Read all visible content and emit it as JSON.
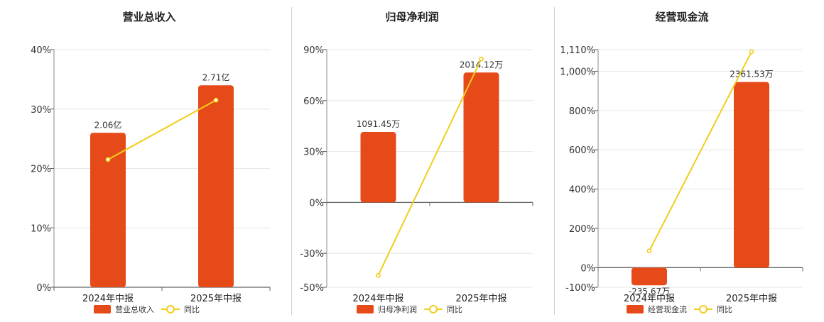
{
  "legend": {
    "yoy_label": "同比"
  },
  "chart_data": [
    {
      "type": "bar",
      "title": "营业总收入",
      "categories": [
        "2024年中报",
        "2025年中报"
      ],
      "series": [
        {
          "name": "营业总收入",
          "values_pct": [
            26,
            34
          ],
          "labels": [
            "2.06亿",
            "2.71亿"
          ]
        },
        {
          "name": "同比",
          "type": "line",
          "values": [
            21.5,
            31.5
          ]
        }
      ],
      "y_ticks": [
        {
          "value": 40,
          "label": "40%"
        },
        {
          "value": 30,
          "label": "30%"
        },
        {
          "value": 20,
          "label": "20%"
        },
        {
          "value": 10,
          "label": "10%"
        },
        {
          "value": 0,
          "label": "0%"
        }
      ],
      "ylim": [
        0,
        40
      ],
      "grid": true,
      "legend": "bottom",
      "colors": {
        "bar": "#e64a19",
        "line": "#f2cd1c"
      }
    },
    {
      "type": "bar",
      "title": "归母净利润",
      "categories": [
        "2024年中报",
        "2025年中报"
      ],
      "series": [
        {
          "name": "归母净利润",
          "values_pct": [
            41.5,
            76.5
          ],
          "labels": [
            "1091.45万",
            "2014.12万"
          ]
        },
        {
          "name": "同比",
          "type": "line",
          "values": [
            -43,
            84.5
          ]
        }
      ],
      "y_ticks": [
        {
          "value": 90,
          "label": "90%"
        },
        {
          "value": 60,
          "label": "60%"
        },
        {
          "value": 30,
          "label": "30%"
        },
        {
          "value": 0,
          "label": "0%"
        },
        {
          "value": -30,
          "label": "-30%"
        },
        {
          "value": -50,
          "label": "-50%"
        }
      ],
      "ylim": [
        -50,
        90
      ],
      "grid": true,
      "legend": "bottom",
      "colors": {
        "bar": "#e64a19",
        "line": "#f2cd1c"
      }
    },
    {
      "type": "bar",
      "title": "经营现金流",
      "categories": [
        "2024年中报",
        "2025年中报"
      ],
      "series": [
        {
          "name": "经营现金流",
          "values_pct": [
            -90,
            945
          ],
          "labels": [
            "-235.67万",
            "2361.53万"
          ]
        },
        {
          "name": "同比",
          "type": "line",
          "values": [
            85,
            1100
          ]
        }
      ],
      "y_ticks": [
        {
          "value": 1110,
          "label": "1,110%"
        },
        {
          "value": 1000,
          "label": "1,000%"
        },
        {
          "value": 800,
          "label": "800%"
        },
        {
          "value": 600,
          "label": "600%"
        },
        {
          "value": 400,
          "label": "400%"
        },
        {
          "value": 200,
          "label": "200%"
        },
        {
          "value": 0,
          "label": "0%"
        },
        {
          "value": -100,
          "label": "-100%"
        }
      ],
      "ylim": [
        -100,
        1110
      ],
      "grid": true,
      "legend": "bottom",
      "colors": {
        "bar": "#e64a19",
        "line": "#f2cd1c"
      }
    }
  ]
}
